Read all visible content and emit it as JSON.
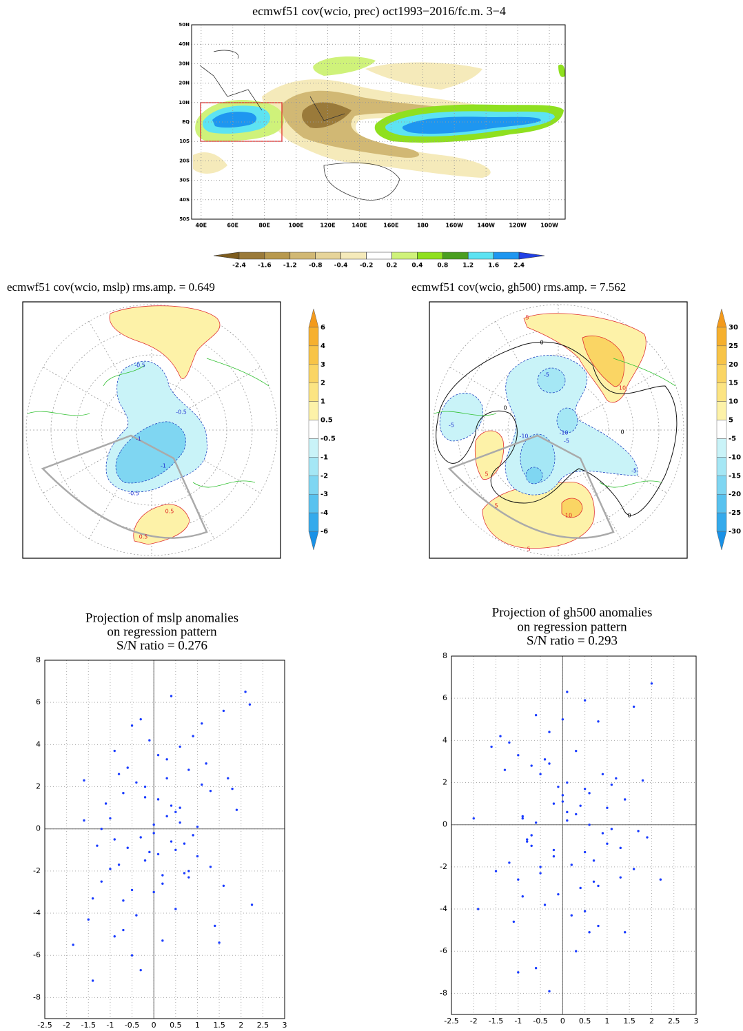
{
  "chart_data": [
    {
      "type": "map",
      "title": "ecmwf51 cov(wcio, prec)  oct1993−2016/fc.m. 3−4",
      "xlim": [
        34,
        270
      ],
      "ylim": [
        -50,
        50
      ],
      "xticks": [
        {
          "value": 40,
          "label": "40E"
        },
        {
          "value": 60,
          "label": "60E"
        },
        {
          "value": 80,
          "label": "80E"
        },
        {
          "value": 100,
          "label": "100E"
        },
        {
          "value": 120,
          "label": "120E"
        },
        {
          "value": 140,
          "label": "140E"
        },
        {
          "value": 160,
          "label": "160E"
        },
        180,
        {
          "value": 200,
          "label": "160W"
        },
        {
          "value": 220,
          "label": "140W"
        },
        {
          "value": 240,
          "label": "120W"
        },
        {
          "value": 260,
          "label": "100W"
        }
      ],
      "yticks": [
        {
          "value": -50,
          "label": "50S"
        },
        {
          "value": -40,
          "label": "40S"
        },
        {
          "value": -30,
          "label": "30S"
        },
        {
          "value": -20,
          "label": "20S"
        },
        {
          "value": -10,
          "label": "10S"
        },
        {
          "value": 0,
          "label": "EQ"
        },
        {
          "value": 10,
          "label": "10N"
        },
        {
          "value": 20,
          "label": "20N"
        },
        {
          "value": 30,
          "label": "30N"
        },
        {
          "value": 40,
          "label": "40N"
        },
        {
          "value": 50,
          "label": "50N"
        }
      ],
      "grid": true,
      "colorbar": {
        "orientation": "horizontal",
        "levels": [
          -2.4,
          -1.6,
          -1.2,
          -0.8,
          -0.4,
          -0.2,
          0.2,
          0.4,
          0.8,
          1.2,
          1.6,
          2.4
        ],
        "colors": [
          "#7d5c1e",
          "#9a7a3a",
          "#b8994e",
          "#d1b874",
          "#e6d49a",
          "#f5eaba",
          "#ffffff",
          "#cff27a",
          "#8fe01f",
          "#4a9e20",
          "#5de3f2",
          "#1e96f0",
          "#2140e6"
        ]
      }
    },
    {
      "type": "polar_map",
      "title": "ecmwf51 cov(wcio, mslp)  rms.amp. = 0.649",
      "colorbar": {
        "orientation": "vertical",
        "levels": [
          6,
          4,
          3,
          2,
          1,
          0.5,
          -0.5,
          -1,
          -2,
          -3,
          -4,
          -6
        ],
        "colors": [
          "#f39a1c",
          "#f6b02e",
          "#f8c447",
          "#fad564",
          "#fce482",
          "#fdf2a8",
          "#ffffff",
          "#c9f3f8",
          "#a5e7f5",
          "#7fd6f2",
          "#58c2ef",
          "#34aaec",
          "#1991e6"
        ]
      },
      "contour_labels": [
        -0.5,
        -0.5,
        -1,
        -1,
        -0.5,
        0.5,
        0.5
      ]
    },
    {
      "type": "polar_map",
      "title": "ecmwf51 cov(wcio, gh500)  rms.amp. = 7.562",
      "colorbar": {
        "orientation": "vertical",
        "levels": [
          30,
          25,
          20,
          15,
          10,
          5,
          -5,
          -10,
          -15,
          -20,
          -25,
          -30
        ],
        "colors": [
          "#f39a1c",
          "#f6b02e",
          "#f8c447",
          "#fad564",
          "#fce482",
          "#fdf2a8",
          "#ffffff",
          "#c9f3f8",
          "#a5e7f5",
          "#7fd6f2",
          "#58c2ef",
          "#34aaec",
          "#1991e6"
        ]
      },
      "contour_labels": [
        5,
        0,
        -5,
        10,
        -5,
        -10,
        -10,
        0,
        -5,
        5,
        0,
        -5,
        5,
        10,
        0,
        5
      ]
    },
    {
      "type": "scatter",
      "title": [
        "Projection of mslp anomalies",
        "on regression pattern",
        "S/N ratio = 0.276"
      ],
      "color": "#1a3cff",
      "grid": true,
      "xlim": [
        -2.5,
        3
      ],
      "ylim": [
        -9,
        8
      ],
      "xticks": [
        -2.5,
        -2,
        -1.5,
        -1,
        -0.5,
        0,
        0.5,
        1,
        1.5,
        2,
        2.5,
        3
      ],
      "yticks": [
        -8,
        -6,
        -4,
        -2,
        0,
        2,
        4,
        6,
        8
      ],
      "x": [
        -1.85,
        -1.4,
        2.1,
        2.2,
        2.25,
        -1.6,
        0.4,
        1.5,
        1.6,
        0.2,
        -0.3,
        -0.5,
        -0.9,
        -1.2,
        0.8,
        1.1,
        -0.2,
        0.1,
        0.5,
        -0.7,
        -1.0,
        0.3,
        0.9,
        1.3,
        -0.4,
        0.0,
        0.6,
        -0.8,
        -0.6,
        1.8,
        1.9,
        -1.3,
        -1.5,
        -0.1,
        0.7,
        1.0,
        -0.3,
        0.2,
        0.4,
        -0.9,
        1.2,
        -1.1,
        0.5,
        -0.5,
        0.1,
        -0.2,
        0.3,
        0.8,
        -0.7,
        1.4,
        -0.4,
        0.6,
        0.0,
        -1.0,
        0.9,
        -0.6,
        1.6,
        -1.4,
        0.2,
        -0.8,
        0.4,
        1.1,
        -0.3,
        0.7,
        -1.2,
        0.1,
        0.5,
        -0.1,
        1.7,
        -0.5,
        0.3,
        -0.9,
        1.0,
        -0.2,
        0.6,
        0.0,
        -0.7,
        1.3,
        -1.6,
        0.8
      ],
      "y": [
        -5.5,
        -7.2,
        6.5,
        5.9,
        -3.6,
        2.3,
        6.3,
        -5.4,
        5.6,
        -5.3,
        -6.7,
        4.9,
        3.7,
        -2.5,
        2.8,
        5.0,
        1.5,
        -1.2,
        0.8,
        -3.4,
        0.5,
        2.4,
        -0.3,
        1.8,
        -4.1,
        0.2,
        3.9,
        -1.7,
        2.9,
        1.9,
        0.9,
        -0.8,
        -4.3,
        4.2,
        -2.1,
        0.1,
        -0.4,
        -2.6,
        1.1,
        -5.1,
        3.1,
        1.2,
        -1.0,
        -2.9,
        3.5,
        -1.5,
        0.6,
        -2.3,
        1.7,
        -4.6,
        2.2,
        0.3,
        -3.0,
        -1.9,
        4.4,
        -0.9,
        -2.7,
        -3.3,
        -2.2,
        2.6,
        -0.6,
        2.1,
        5.2,
        -0.7,
        0.0,
        1.4,
        -3.8,
        -1.1,
        2.4,
        -6.0,
        3.3,
        -0.5,
        -1.3,
        2.0,
        1.0,
        -0.2,
        -4.8,
        -1.8,
        0.4,
        -2.0
      ]
    },
    {
      "type": "scatter",
      "title": [
        "Projection of gh500 anomalies",
        "on regression pattern",
        "S/N ratio = 0.293"
      ],
      "color": "#1a3cff",
      "grid": true,
      "xlim": [
        -2.5,
        3
      ],
      "ylim": [
        -9,
        8
      ],
      "xticks": [
        -2.5,
        -2,
        -1.5,
        -1,
        -0.5,
        0,
        0.5,
        1,
        1.5,
        2,
        2.5,
        3
      ],
      "yticks": [
        -8,
        -6,
        -4,
        -2,
        0,
        2,
        4,
        6,
        8
      ],
      "x": [
        2.0,
        2.2,
        -1.0,
        -0.3,
        1.4,
        -1.9,
        0.1,
        1.6,
        -2.0,
        0.5,
        -0.6,
        -0.5,
        -0.9,
        -1.2,
        0.8,
        1.1,
        -0.2,
        0.1,
        0.5,
        -0.7,
        -1.0,
        0.3,
        0.9,
        1.3,
        -0.4,
        0.0,
        0.6,
        -0.8,
        -0.6,
        1.8,
        1.9,
        -1.3,
        -1.5,
        -0.1,
        0.7,
        1.0,
        -0.3,
        0.2,
        0.4,
        -0.9,
        1.2,
        -1.1,
        0.5,
        -0.5,
        0.1,
        -0.2,
        0.3,
        0.8,
        -0.7,
        1.4,
        -0.4,
        0.6,
        0.0,
        -1.0,
        0.9,
        -0.6,
        1.6,
        -1.4,
        0.2,
        -0.8,
        0.4,
        1.1,
        -0.3,
        0.7,
        -1.2,
        0.1,
        0.5,
        -0.1,
        1.7,
        -0.5,
        0.3,
        -0.9,
        1.0,
        -0.2,
        0.6,
        0.0,
        -0.7,
        1.3,
        -1.6,
        0.8
      ],
      "y": [
        6.7,
        -2.6,
        -7.0,
        -7.9,
        -5.1,
        -4.0,
        6.3,
        5.6,
        0.3,
        5.9,
        -6.8,
        -2.0,
        0.4,
        -1.8,
        -4.8,
        -0.2,
        1.0,
        2.0,
        -1.3,
        -0.5,
        3.3,
        -6.0,
        2.4,
        -1.1,
        -3.8,
        1.4,
        0.0,
        -0.7,
        5.2,
        2.1,
        -0.6,
        2.6,
        -2.2,
        -3.3,
        -2.7,
        -0.9,
        4.4,
        -1.9,
        -3.0,
        0.3,
        2.2,
        -4.6,
        1.7,
        -2.3,
        0.6,
        -1.5,
        3.5,
        -2.9,
        -1.0,
        1.2,
        3.1,
        -5.1,
        1.1,
        -2.6,
        -0.4,
        0.1,
        -2.1,
        4.2,
        -4.3,
        -0.8,
        0.9,
        1.9,
        2.9,
        -1.7,
        3.9,
        0.2,
        -4.1,
        1.8,
        -0.3,
        2.4,
        0.5,
        -3.4,
        0.8,
        -1.2,
        1.5,
        5.0,
        2.8,
        -2.5,
        3.7,
        4.9
      ]
    }
  ]
}
